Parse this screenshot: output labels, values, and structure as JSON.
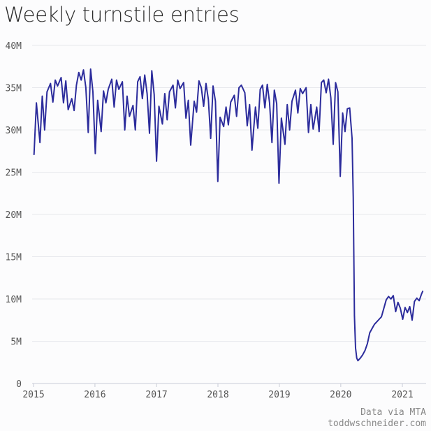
{
  "chart_data": {
    "type": "line",
    "title": "Weekly turnstile entries",
    "xlabel": "",
    "ylabel": "",
    "ylim": [
      0,
      40000000
    ],
    "xlim": [
      "2015-01-01",
      "2021-05-06"
    ],
    "y_ticks": [
      {
        "value": 0,
        "label": "0"
      },
      {
        "value": 5000000,
        "label": "5M"
      },
      {
        "value": 10000000,
        "label": "10M"
      },
      {
        "value": 15000000,
        "label": "15M"
      },
      {
        "value": 20000000,
        "label": "20M"
      },
      {
        "value": 25000000,
        "label": "25M"
      },
      {
        "value": 30000000,
        "label": "30M"
      },
      {
        "value": 35000000,
        "label": "35M"
      },
      {
        "value": 40000000,
        "label": "40M"
      }
    ],
    "x_ticks": [
      {
        "value": "2015-01-01",
        "label": "2015"
      },
      {
        "value": "2016-01-01",
        "label": "2016"
      },
      {
        "value": "2017-01-01",
        "label": "2017"
      },
      {
        "value": "2018-01-01",
        "label": "2018"
      },
      {
        "value": "2019-01-01",
        "label": "2019"
      },
      {
        "value": "2020-01-01",
        "label": "2020"
      },
      {
        "value": "2021-01-01",
        "label": "2021"
      }
    ],
    "grid": true,
    "line_color": "#2c2c9c",
    "series": [
      {
        "values": [
          [
            "2015-01-04",
            27.1
          ],
          [
            "2015-01-18",
            33.2
          ],
          [
            "2015-02-08",
            28.5
          ],
          [
            "2015-02-22",
            34.0
          ],
          [
            "2015-03-08",
            30.0
          ],
          [
            "2015-03-22",
            34.5
          ],
          [
            "2015-04-12",
            35.5
          ],
          [
            "2015-04-26",
            33.3
          ],
          [
            "2015-05-10",
            35.9
          ],
          [
            "2015-05-24",
            35.2
          ],
          [
            "2015-06-14",
            36.2
          ],
          [
            "2015-06-28",
            33.2
          ],
          [
            "2015-07-12",
            35.8
          ],
          [
            "2015-07-26",
            32.4
          ],
          [
            "2015-08-16",
            33.7
          ],
          [
            "2015-08-30",
            32.3
          ],
          [
            "2015-09-13",
            35.3
          ],
          [
            "2015-09-27",
            36.8
          ],
          [
            "2015-10-11",
            35.9
          ],
          [
            "2015-10-25",
            37.1
          ],
          [
            "2015-11-08",
            35.0
          ],
          [
            "2015-11-22",
            29.7
          ],
          [
            "2015-12-06",
            37.2
          ],
          [
            "2015-12-20",
            34.5
          ],
          [
            "2016-01-03",
            27.2
          ],
          [
            "2016-01-17",
            33.5
          ],
          [
            "2016-02-07",
            29.8
          ],
          [
            "2016-02-21",
            34.6
          ],
          [
            "2016-03-06",
            33.2
          ],
          [
            "2016-03-20",
            34.8
          ],
          [
            "2016-04-10",
            36.0
          ],
          [
            "2016-04-24",
            32.7
          ],
          [
            "2016-05-08",
            35.9
          ],
          [
            "2016-05-22",
            34.8
          ],
          [
            "2016-06-12",
            35.7
          ],
          [
            "2016-06-26",
            30.0
          ],
          [
            "2016-07-10",
            34.0
          ],
          [
            "2016-07-24",
            31.6
          ],
          [
            "2016-08-14",
            32.9
          ],
          [
            "2016-08-28",
            30.0
          ],
          [
            "2016-09-11",
            35.7
          ],
          [
            "2016-09-25",
            36.3
          ],
          [
            "2016-10-09",
            33.7
          ],
          [
            "2016-10-23",
            36.5
          ],
          [
            "2016-11-06",
            34.3
          ],
          [
            "2016-11-20",
            29.6
          ],
          [
            "2016-12-04",
            37.0
          ],
          [
            "2016-12-18",
            34.2
          ],
          [
            "2017-01-01",
            26.3
          ],
          [
            "2017-01-15",
            32.8
          ],
          [
            "2017-02-05",
            30.7
          ],
          [
            "2017-02-19",
            34.3
          ],
          [
            "2017-03-05",
            31.2
          ],
          [
            "2017-03-19",
            34.5
          ],
          [
            "2017-04-09",
            35.3
          ],
          [
            "2017-04-23",
            32.6
          ],
          [
            "2017-05-07",
            35.9
          ],
          [
            "2017-05-21",
            34.9
          ],
          [
            "2017-06-11",
            35.6
          ],
          [
            "2017-06-25",
            31.4
          ],
          [
            "2017-07-09",
            33.5
          ],
          [
            "2017-07-23",
            28.2
          ],
          [
            "2017-08-13",
            33.4
          ],
          [
            "2017-08-27",
            32.1
          ],
          [
            "2017-09-10",
            35.8
          ],
          [
            "2017-09-24",
            35.0
          ],
          [
            "2017-10-08",
            32.8
          ],
          [
            "2017-10-22",
            35.5
          ],
          [
            "2017-11-05",
            33.6
          ],
          [
            "2017-11-19",
            29.0
          ],
          [
            "2017-12-03",
            35.2
          ],
          [
            "2017-12-17",
            33.4
          ],
          [
            "2017-12-31",
            23.9
          ],
          [
            "2018-01-14",
            31.5
          ],
          [
            "2018-02-04",
            30.4
          ],
          [
            "2018-02-18",
            32.7
          ],
          [
            "2018-03-04",
            30.6
          ],
          [
            "2018-03-18",
            33.3
          ],
          [
            "2018-04-08",
            34.1
          ],
          [
            "2018-04-22",
            31.6
          ],
          [
            "2018-05-06",
            35.0
          ],
          [
            "2018-05-20",
            35.3
          ],
          [
            "2018-06-10",
            34.4
          ],
          [
            "2018-06-24",
            30.5
          ],
          [
            "2018-07-08",
            33.0
          ],
          [
            "2018-07-22",
            27.6
          ],
          [
            "2018-08-12",
            32.7
          ],
          [
            "2018-08-26",
            30.2
          ],
          [
            "2018-09-09",
            34.8
          ],
          [
            "2018-09-23",
            35.3
          ],
          [
            "2018-10-07",
            32.6
          ],
          [
            "2018-10-21",
            35.4
          ],
          [
            "2018-11-04",
            33.2
          ],
          [
            "2018-11-18",
            28.5
          ],
          [
            "2018-12-02",
            34.7
          ],
          [
            "2018-12-16",
            33.1
          ],
          [
            "2018-12-30",
            23.7
          ],
          [
            "2019-01-13",
            31.4
          ],
          [
            "2019-02-03",
            28.3
          ],
          [
            "2019-02-17",
            33.0
          ],
          [
            "2019-03-03",
            30.0
          ],
          [
            "2019-03-17",
            33.4
          ],
          [
            "2019-04-07",
            34.7
          ],
          [
            "2019-04-21",
            32.0
          ],
          [
            "2019-05-05",
            34.9
          ],
          [
            "2019-05-19",
            34.3
          ],
          [
            "2019-06-09",
            35.0
          ],
          [
            "2019-06-23",
            29.7
          ],
          [
            "2019-07-07",
            33.0
          ],
          [
            "2019-07-21",
            30.1
          ],
          [
            "2019-08-11",
            32.7
          ],
          [
            "2019-08-25",
            29.8
          ],
          [
            "2019-09-08",
            35.6
          ],
          [
            "2019-09-22",
            35.9
          ],
          [
            "2019-10-06",
            34.4
          ],
          [
            "2019-10-20",
            36.0
          ],
          [
            "2019-11-03",
            33.8
          ],
          [
            "2019-11-17",
            28.3
          ],
          [
            "2019-12-01",
            35.6
          ],
          [
            "2019-12-15",
            34.5
          ],
          [
            "2019-12-29",
            24.5
          ],
          [
            "2020-01-12",
            32.0
          ],
          [
            "2020-01-26",
            29.8
          ],
          [
            "2020-02-09",
            32.5
          ],
          [
            "2020-02-23",
            32.6
          ],
          [
            "2020-03-08",
            29.0
          ],
          [
            "2020-03-15",
            22.0
          ],
          [
            "2020-03-22",
            8.0
          ],
          [
            "2020-03-29",
            4.2
          ],
          [
            "2020-04-05",
            3.0
          ],
          [
            "2020-04-12",
            2.7
          ],
          [
            "2020-04-26",
            3.0
          ],
          [
            "2020-05-10",
            3.4
          ],
          [
            "2020-05-24",
            3.9
          ],
          [
            "2020-06-07",
            4.7
          ],
          [
            "2020-06-21",
            6.0
          ],
          [
            "2020-07-05",
            6.5
          ],
          [
            "2020-07-19",
            7.0
          ],
          [
            "2020-08-02",
            7.3
          ],
          [
            "2020-08-16",
            7.6
          ],
          [
            "2020-08-30",
            7.9
          ],
          [
            "2020-09-13",
            8.9
          ],
          [
            "2020-09-27",
            9.9
          ],
          [
            "2020-10-11",
            10.3
          ],
          [
            "2020-10-25",
            10.0
          ],
          [
            "2020-11-08",
            10.4
          ],
          [
            "2020-11-22",
            8.5
          ],
          [
            "2020-12-06",
            9.6
          ],
          [
            "2020-12-20",
            8.9
          ],
          [
            "2021-01-03",
            7.6
          ],
          [
            "2021-01-17",
            9.0
          ],
          [
            "2021-01-31",
            8.4
          ],
          [
            "2021-02-14",
            9.1
          ],
          [
            "2021-02-28",
            7.5
          ],
          [
            "2021-03-14",
            9.7
          ],
          [
            "2021-03-28",
            10.1
          ],
          [
            "2021-04-11",
            9.8
          ],
          [
            "2021-04-25",
            10.6
          ],
          [
            "2021-05-02",
            10.9
          ]
        ]
      }
    ]
  },
  "credits": {
    "line1": "Data via MTA",
    "line2": "toddwschneider.com"
  }
}
